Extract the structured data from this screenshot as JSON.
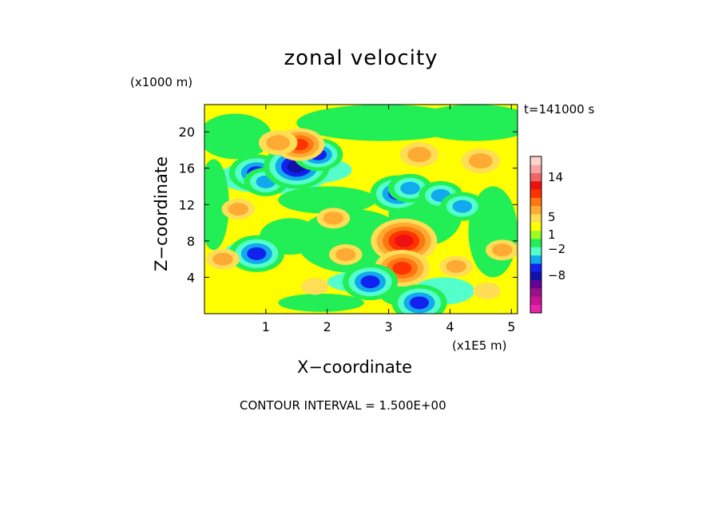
{
  "chart_data": {
    "type": "heatmap",
    "title": "zonal velocity",
    "xlabel": "X−coordinate",
    "ylabel": "Z−coordinate",
    "x_unit": "(x1E5 m)",
    "y_unit": "(x1000 m)",
    "time_label": "t=141000 s",
    "footer": "CONTOUR INTERVAL = 1.500E+00",
    "xlim": [
      0,
      5.1
    ],
    "ylim": [
      0,
      23
    ],
    "x_ticks": [
      1,
      2,
      3,
      4,
      5
    ],
    "y_ticks": [
      4,
      8,
      12,
      16,
      20
    ],
    "colorbar": {
      "tick_labels": [
        {
          "value": 14,
          "text": "14"
        },
        {
          "value": 5,
          "text": "5"
        },
        {
          "value": 1,
          "text": "1"
        },
        {
          "value": -2,
          "text": "−2"
        },
        {
          "value": -8,
          "text": "−8"
        }
      ],
      "colors_bottom_to_top": [
        "#ee22aa",
        "#cc1199",
        "#991188",
        "#660099",
        "#1111aa",
        "#1122ee",
        "#11aaee",
        "#55ffcc",
        "#22ee55",
        "#99ff22",
        "#ffff00",
        "#ffdd55",
        "#ffaa33",
        "#ff7711",
        "#ff3300",
        "#ee1111",
        "#ee6666",
        "#f7a5a5",
        "#fdd4cc"
      ]
    },
    "features": [
      {
        "x": 0.85,
        "z": 15.5,
        "value": -6
      },
      {
        "x": 1.0,
        "z": 14.5,
        "value": -4
      },
      {
        "x": 1.5,
        "z": 16.2,
        "value": -8
      },
      {
        "x": 1.85,
        "z": 17.5,
        "value": -5
      },
      {
        "x": 1.55,
        "z": 18.6,
        "value": 5
      },
      {
        "x": 1.2,
        "z": 18.8,
        "value": 3
      },
      {
        "x": 0.85,
        "z": 6.6,
        "value": -6
      },
      {
        "x": 0.55,
        "z": 11.5,
        "value": 2
      },
      {
        "x": 3.15,
        "z": 13.2,
        "value": -6
      },
      {
        "x": 3.35,
        "z": 13.8,
        "value": -4
      },
      {
        "x": 3.25,
        "z": 8.0,
        "value": 8
      },
      {
        "x": 3.22,
        "z": 5.0,
        "value": 6
      },
      {
        "x": 3.5,
        "z": 1.2,
        "value": -6
      },
      {
        "x": 3.85,
        "z": 13.0,
        "value": -4
      },
      {
        "x": 4.2,
        "z": 11.8,
        "value": -4
      },
      {
        "x": 2.7,
        "z": 3.5,
        "value": -6
      },
      {
        "x": 3.5,
        "z": 17.5,
        "value": 3
      },
      {
        "x": 4.5,
        "z": 16.8,
        "value": 3
      },
      {
        "x": 2.1,
        "z": 10.5,
        "value": 2
      },
      {
        "x": 2.3,
        "z": 6.5,
        "value": 2
      },
      {
        "x": 4.1,
        "z": 5.2,
        "value": 2
      },
      {
        "x": 4.6,
        "z": 2.5,
        "value": 1
      },
      {
        "x": 1.8,
        "z": 3.0,
        "value": 1
      },
      {
        "x": 0.3,
        "z": 6.0,
        "value": 2
      },
      {
        "x": 4.85,
        "z": 7.0,
        "value": 2
      },
      {
        "x": 3.0,
        "z": 20.5,
        "value": -1
      },
      {
        "x": 4.5,
        "z": 20.5,
        "value": -1
      },
      {
        "x": 0.5,
        "z": 20.0,
        "value": -1
      }
    ]
  }
}
